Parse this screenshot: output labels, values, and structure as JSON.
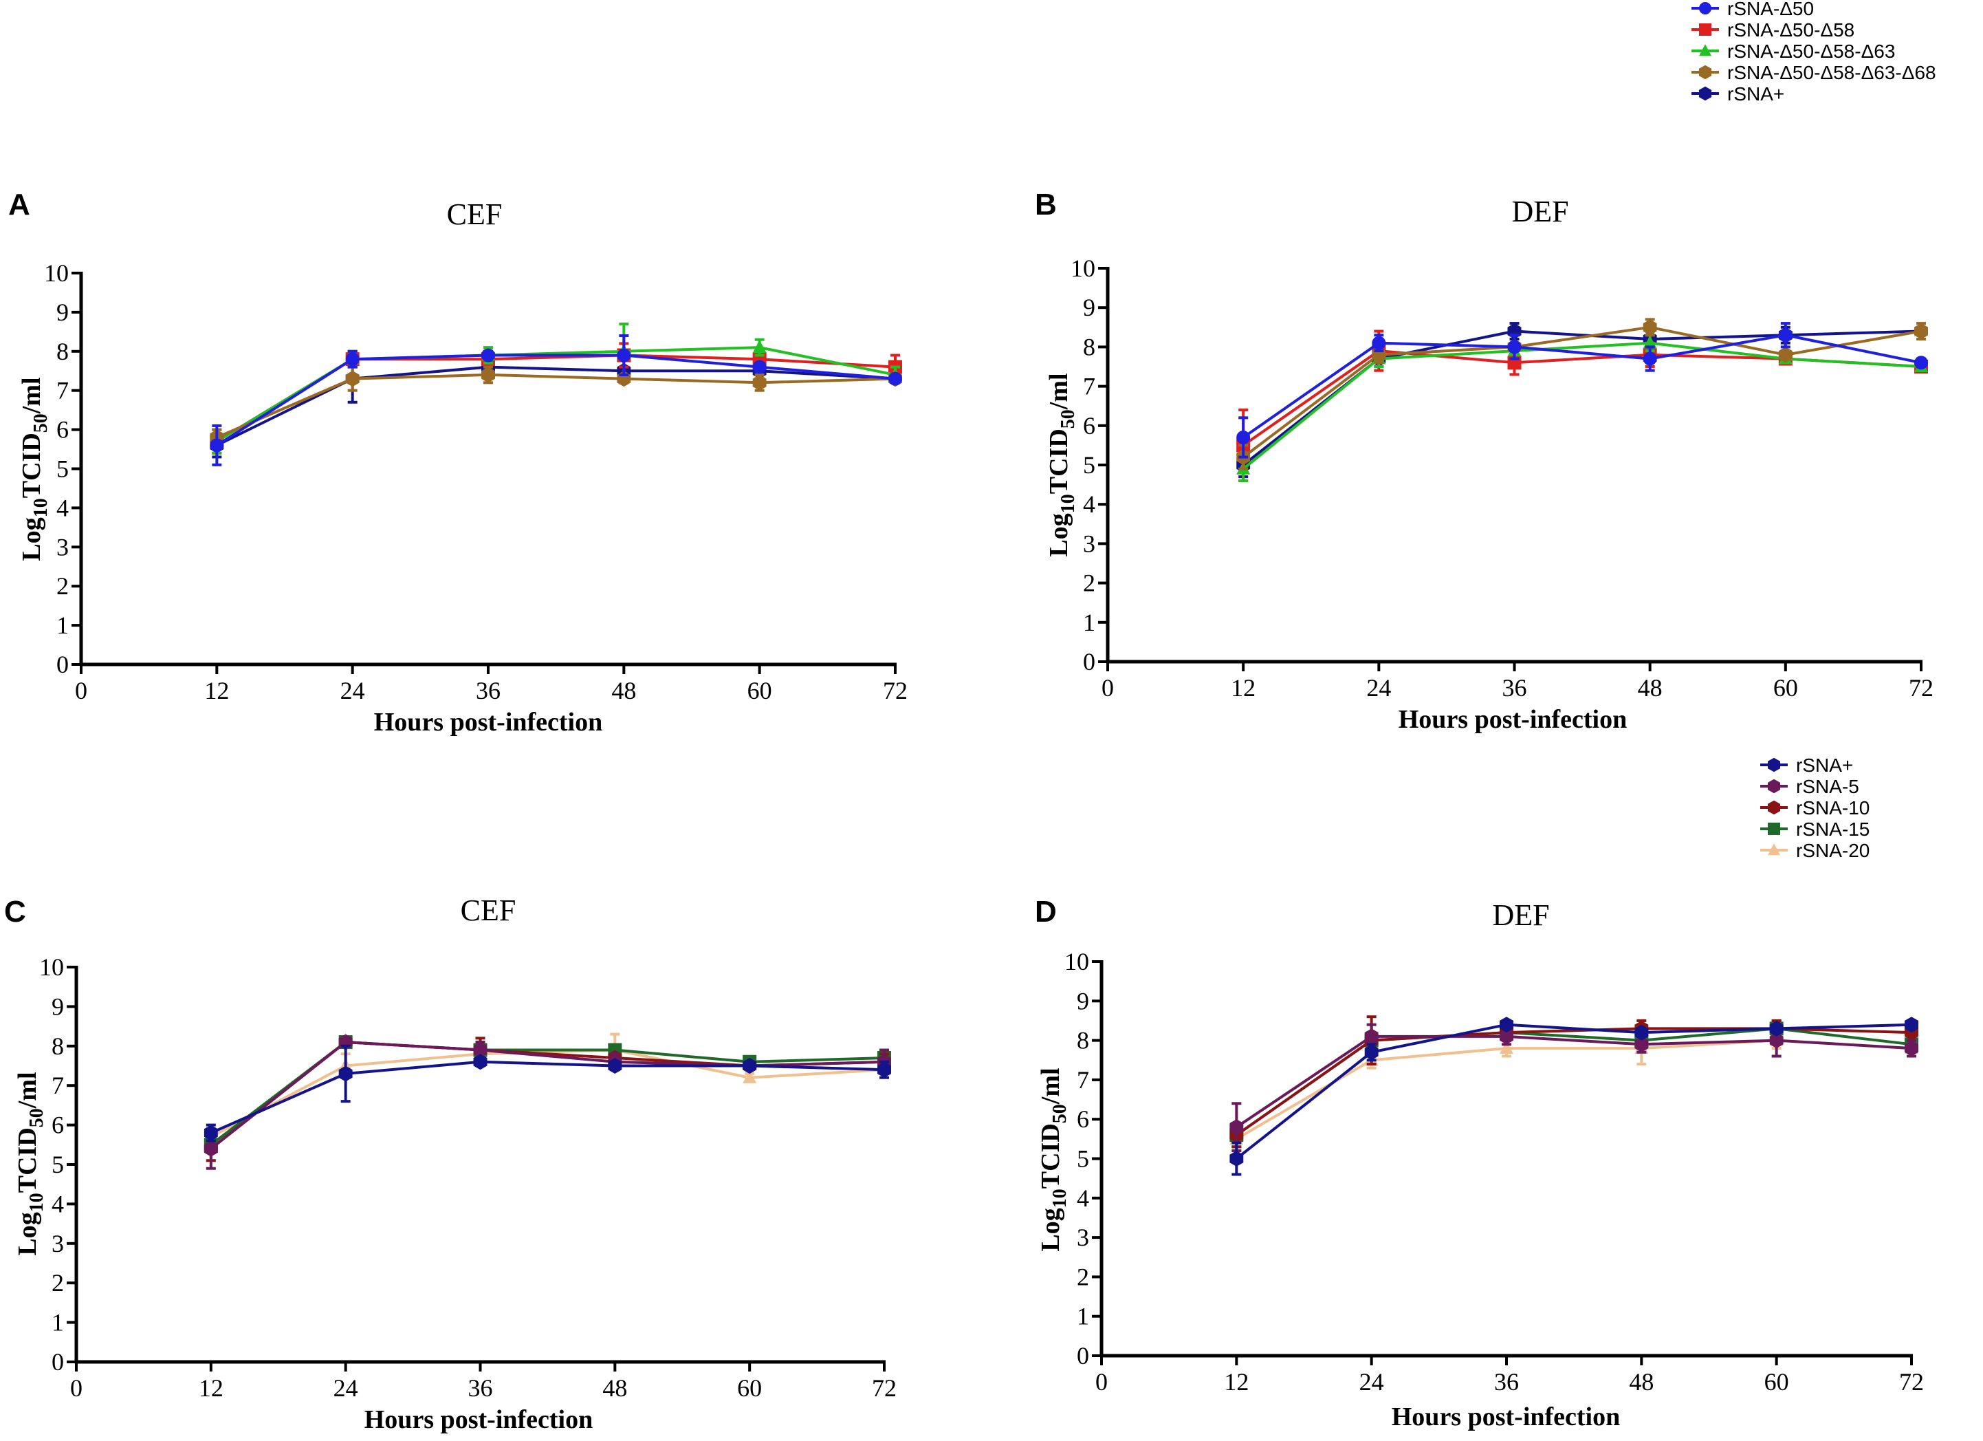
{
  "legend_top": {
    "entries": [
      {
        "name": "rSNA-Δ50",
        "color": "#1f1fe0",
        "marker": "circle"
      },
      {
        "name": "rSNA-Δ50-Δ58",
        "color": "#e01f1f",
        "marker": "square"
      },
      {
        "name": "rSNA-Δ50-Δ58-Δ63",
        "color": "#22c022",
        "marker": "triangle"
      },
      {
        "name": "rSNA-Δ50-Δ58-Δ63-Δ68",
        "color": "#9a6a25",
        "marker": "hexagon"
      },
      {
        "name": "rSNA+",
        "color": "#14148a",
        "marker": "hexagon"
      }
    ]
  },
  "legend_bottom": {
    "entries": [
      {
        "name": "rSNA+",
        "color": "#14148a",
        "marker": "hexagon"
      },
      {
        "name": "rSNA-5",
        "color": "#6a1a5a",
        "marker": "hexagon"
      },
      {
        "name": "rSNA-10",
        "color": "#8a1414",
        "marker": "hexagon"
      },
      {
        "name": "rSNA-15",
        "color": "#1f6a2a",
        "marker": "square"
      },
      {
        "name": "rSNA-20",
        "color": "#f0c090",
        "marker": "triangle"
      }
    ]
  },
  "chart_data": [
    {
      "panel": "A",
      "type": "line",
      "title": "CEF",
      "xlabel": "Hours post-infection",
      "ylabel": "Log10TCID50/ml",
      "xlim": [
        0,
        72
      ],
      "ylim": [
        0,
        10
      ],
      "xticks": [
        0,
        12,
        24,
        36,
        48,
        60,
        72
      ],
      "yticks": [
        0,
        1,
        2,
        3,
        4,
        5,
        6,
        7,
        8,
        9,
        10
      ],
      "x": [
        12,
        24,
        36,
        48,
        60,
        72
      ],
      "legend": "top",
      "series": [
        {
          "name": "rSNA+",
          "color": "#14148a",
          "marker": "hexagon",
          "values": [
            5.6,
            7.3,
            7.6,
            7.5,
            7.5,
            7.3
          ],
          "errors": [
            0.3,
            0.6,
            0.2,
            0.3,
            0.2,
            0.1
          ]
        },
        {
          "name": "rSNA-Δ50-Δ58",
          "color": "#e01f1f",
          "marker": "square",
          "values": [
            5.7,
            7.8,
            7.8,
            7.9,
            7.8,
            7.6
          ],
          "errors": [
            0.3,
            0.2,
            0.2,
            0.3,
            0.2,
            0.3
          ]
        },
        {
          "name": "rSNA-Δ50-Δ58-Δ63",
          "color": "#22c022",
          "marker": "triangle",
          "values": [
            5.7,
            7.8,
            7.9,
            8.0,
            8.1,
            7.4
          ],
          "errors": [
            0.3,
            0.2,
            0.2,
            0.7,
            0.2,
            0.2
          ]
        },
        {
          "name": "rSNA-Δ50-Δ58-Δ63-Δ68",
          "color": "#9a6a25",
          "marker": "hexagon",
          "values": [
            5.8,
            7.3,
            7.4,
            7.3,
            7.2,
            7.3
          ],
          "errors": [
            0.2,
            0.3,
            0.2,
            0.1,
            0.2,
            0.1
          ]
        },
        {
          "name": "rSNA-Δ50",
          "color": "#1f1fe0",
          "marker": "circle",
          "values": [
            5.6,
            7.8,
            7.9,
            7.9,
            7.6,
            7.3
          ],
          "errors": [
            0.5,
            0.2,
            0.1,
            0.5,
            0.1,
            0.1
          ]
        }
      ]
    },
    {
      "panel": "B",
      "type": "line",
      "title": "DEF",
      "xlabel": "Hours post-infection",
      "ylabel": "Log10TCID50/ml",
      "xlim": [
        0,
        72
      ],
      "ylim": [
        0,
        10
      ],
      "xticks": [
        0,
        12,
        24,
        36,
        48,
        60,
        72
      ],
      "yticks": [
        0,
        1,
        2,
        3,
        4,
        5,
        6,
        7,
        8,
        9,
        10
      ],
      "x": [
        12,
        24,
        36,
        48,
        60,
        72
      ],
      "legend": "top",
      "series": [
        {
          "name": "rSNA+",
          "color": "#14148a",
          "marker": "hexagon",
          "values": [
            5.0,
            7.7,
            8.4,
            8.2,
            8.3,
            8.4
          ],
          "errors": [
            0.3,
            0.2,
            0.2,
            0.2,
            0.2,
            0.1
          ]
        },
        {
          "name": "rSNA-Δ50-Δ58",
          "color": "#e01f1f",
          "marker": "square",
          "values": [
            5.5,
            7.9,
            7.6,
            7.8,
            7.7,
            7.5
          ],
          "errors": [
            0.9,
            0.5,
            0.3,
            0.3,
            0.1,
            0.1
          ]
        },
        {
          "name": "rSNA-Δ50-Δ58-Δ63",
          "color": "#22c022",
          "marker": "triangle",
          "values": [
            4.9,
            7.7,
            7.9,
            8.1,
            7.7,
            7.5
          ],
          "errors": [
            0.3,
            0.2,
            0.2,
            0.2,
            0.1,
            0.1
          ]
        },
        {
          "name": "rSNA-Δ50-Δ58-Δ63-Δ68",
          "color": "#9a6a25",
          "marker": "hexagon",
          "values": [
            5.2,
            7.8,
            8.0,
            8.5,
            7.8,
            8.4
          ],
          "errors": [
            0.3,
            0.2,
            0.3,
            0.2,
            0.1,
            0.2
          ]
        },
        {
          "name": "rSNA-Δ50",
          "color": "#1f1fe0",
          "marker": "circle",
          "values": [
            5.7,
            8.1,
            8.0,
            7.7,
            8.3,
            7.6
          ],
          "errors": [
            0.5,
            0.2,
            0.3,
            0.3,
            0.3,
            0.1
          ]
        }
      ]
    },
    {
      "panel": "C",
      "type": "line",
      "title": "CEF",
      "xlabel": "Hours post-infection",
      "ylabel": "Log10TCID50/ml",
      "xlim": [
        0,
        72
      ],
      "ylim": [
        0,
        10
      ],
      "xticks": [
        0,
        12,
        24,
        36,
        48,
        60,
        72
      ],
      "yticks": [
        0,
        1,
        2,
        3,
        4,
        5,
        6,
        7,
        8,
        9,
        10
      ],
      "x": [
        12,
        24,
        36,
        48,
        60,
        72
      ],
      "legend": "middle-right",
      "series": [
        {
          "name": "rSNA-20",
          "color": "#f0c090",
          "marker": "triangle",
          "values": [
            5.7,
            7.5,
            7.8,
            7.9,
            7.2,
            7.4
          ],
          "errors": [
            0.2,
            0.3,
            0.2,
            0.4,
            0.1,
            0.1
          ]
        },
        {
          "name": "rSNA-15",
          "color": "#1f6a2a",
          "marker": "square",
          "values": [
            5.5,
            8.1,
            7.9,
            7.9,
            7.6,
            7.7
          ],
          "errors": [
            0.2,
            0.1,
            0.2,
            0.1,
            0.1,
            0.1
          ]
        },
        {
          "name": "rSNA-10",
          "color": "#8a1414",
          "marker": "hexagon",
          "values": [
            5.4,
            8.1,
            7.9,
            7.7,
            7.5,
            7.6
          ],
          "errors": [
            0.3,
            0.1,
            0.3,
            0.1,
            0.1,
            0.2
          ]
        },
        {
          "name": "rSNA-5",
          "color": "#6a1a5a",
          "marker": "hexagon",
          "values": [
            5.4,
            8.1,
            7.9,
            7.6,
            7.5,
            7.6
          ],
          "errors": [
            0.5,
            0.1,
            0.2,
            0.2,
            0.1,
            0.3
          ]
        },
        {
          "name": "rSNA+",
          "color": "#14148a",
          "marker": "hexagon",
          "values": [
            5.8,
            7.3,
            7.6,
            7.5,
            7.5,
            7.4
          ],
          "errors": [
            0.2,
            0.7,
            0.1,
            0.1,
            0.1,
            0.2
          ]
        }
      ]
    },
    {
      "panel": "D",
      "type": "line",
      "title": "DEF",
      "xlabel": "Hours post-infection",
      "ylabel": "Log10TCID50/ml",
      "xlim": [
        0,
        72
      ],
      "ylim": [
        0,
        10
      ],
      "xticks": [
        0,
        12,
        24,
        36,
        48,
        60,
        72
      ],
      "yticks": [
        0,
        1,
        2,
        3,
        4,
        5,
        6,
        7,
        8,
        9,
        10
      ],
      "x": [
        12,
        24,
        36,
        48,
        60,
        72
      ],
      "legend": "middle-right",
      "series": [
        {
          "name": "rSNA-20",
          "color": "#f0c090",
          "marker": "triangle",
          "values": [
            5.5,
            7.5,
            7.8,
            7.8,
            8.0,
            7.8
          ],
          "errors": [
            0.3,
            0.2,
            0.2,
            0.4,
            0.2,
            0.2
          ]
        },
        {
          "name": "rSNA-15",
          "color": "#1f6a2a",
          "marker": "square",
          "values": [
            5.6,
            8.0,
            8.2,
            8.0,
            8.3,
            7.9
          ],
          "errors": [
            0.3,
            0.2,
            0.1,
            0.2,
            0.2,
            0.2
          ]
        },
        {
          "name": "rSNA-10",
          "color": "#8a1414",
          "marker": "hexagon",
          "values": [
            5.6,
            8.0,
            8.2,
            8.3,
            8.3,
            8.2
          ],
          "errors": [
            0.3,
            0.6,
            0.2,
            0.2,
            0.2,
            0.2
          ]
        },
        {
          "name": "rSNA-5",
          "color": "#6a1a5a",
          "marker": "hexagon",
          "values": [
            5.8,
            8.1,
            8.1,
            7.9,
            8.0,
            7.8
          ],
          "errors": [
            0.6,
            0.3,
            0.2,
            0.2,
            0.4,
            0.2
          ]
        },
        {
          "name": "rSNA+",
          "color": "#14148a",
          "marker": "hexagon",
          "values": [
            5.0,
            7.7,
            8.4,
            8.2,
            8.3,
            8.4
          ],
          "errors": [
            0.4,
            0.2,
            0.1,
            0.1,
            0.1,
            0.1
          ]
        }
      ]
    }
  ]
}
